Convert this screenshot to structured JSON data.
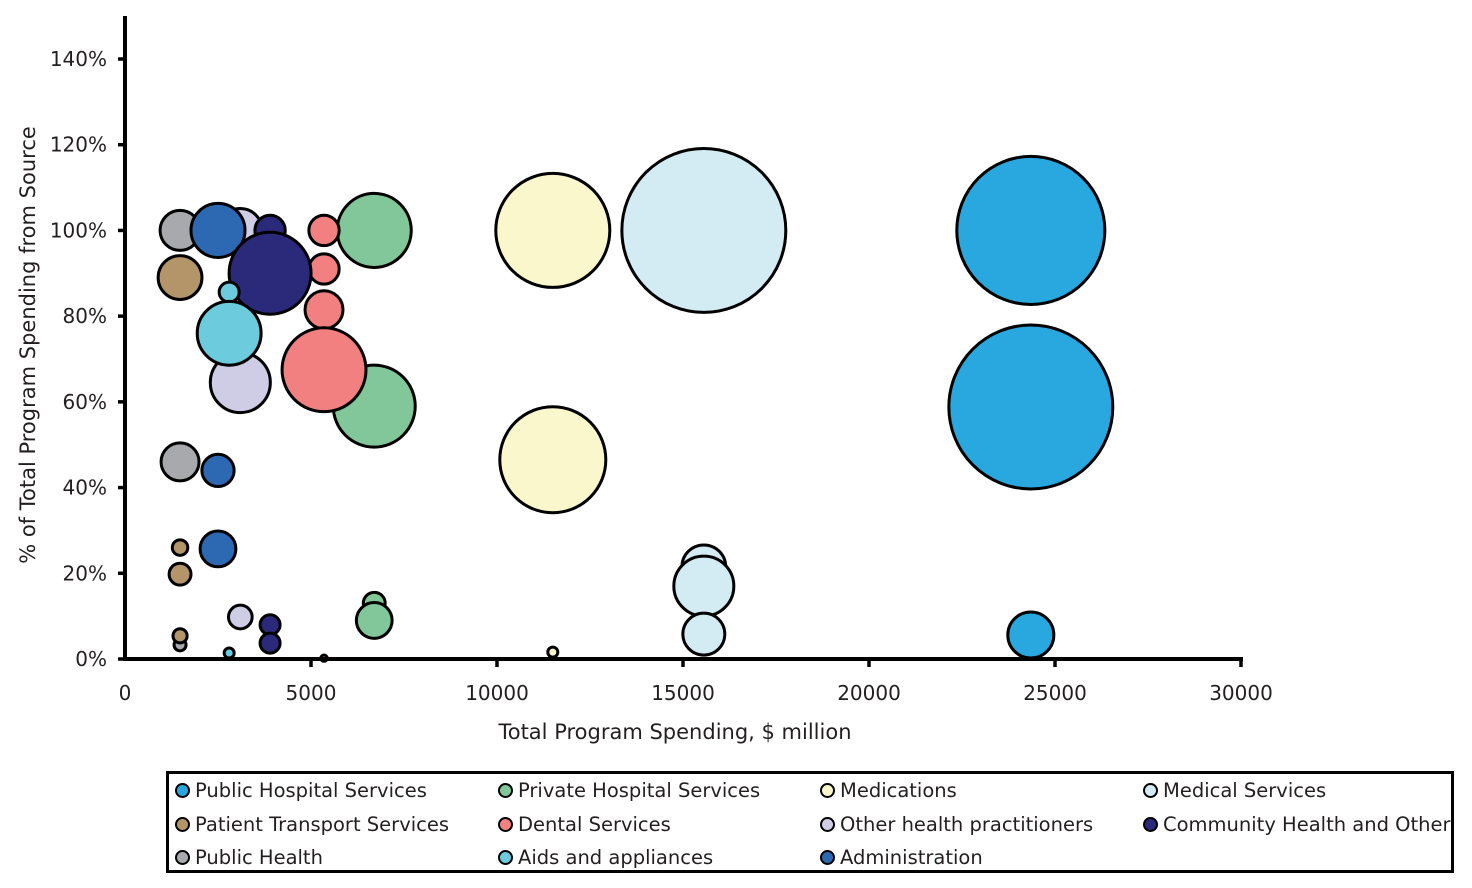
{
  "chart_data": {
    "type": "scatter",
    "subtype": "bubble",
    "title": "",
    "xlabel": "Total Program Spending, $ million",
    "ylabel": "% of Total Program Spending from Source",
    "xlim": [
      0,
      30000
    ],
    "ylim": [
      0,
      140
    ],
    "x_ticks": [
      0,
      5000,
      10000,
      15000,
      20000,
      25000,
      30000
    ],
    "x_tick_labels": [
      "0",
      "5000",
      "10000",
      "15000",
      "20000",
      "25000",
      "30000"
    ],
    "y_ticks": [
      0,
      20,
      40,
      60,
      80,
      100,
      120,
      140
    ],
    "y_tick_labels": [
      "0%",
      "20%",
      "40%",
      "60%",
      "80%",
      "100%",
      "120%",
      "140%"
    ],
    "grid": false,
    "legend_position": "bottom",
    "size_note": "bubble area proportional to spending from source (relative units)",
    "series": [
      {
        "name": "Public Hospital Services",
        "color": "#29a8e0",
        "x": 24350,
        "points": [
          {
            "y": 100,
            "size": 54.8
          },
          {
            "y": 58.8,
            "size": 67.2
          },
          {
            "y": 5.6,
            "size": 5.3
          }
        ]
      },
      {
        "name": "Private Hospital Services",
        "color": "#82c79a",
        "x": 6700,
        "points": [
          {
            "y": 100,
            "size": 13.7
          },
          {
            "y": 59,
            "size": 16.8
          },
          {
            "y": 13,
            "size": 1.2
          },
          {
            "y": 9,
            "size": 3.2
          }
        ]
      },
      {
        "name": "Medications",
        "color": "#fbf7cc",
        "x": 11500,
        "points": [
          {
            "y": 100,
            "size": 32.5
          },
          {
            "y": 46.5,
            "size": 28.1
          },
          {
            "y": 1.6,
            "size": 0.25
          }
        ]
      },
      {
        "name": "Medical Services",
        "color": "#d3ebf3",
        "x": 15560,
        "points": [
          {
            "y": 100,
            "size": 67.2
          },
          {
            "y": 21.5,
            "size": 4.8
          },
          {
            "y": 17,
            "size": 9.0
          },
          {
            "y": 5.8,
            "size": 4.4
          }
        ]
      },
      {
        "name": "Patient Transport Services",
        "color": "#b39569",
        "x": 1480,
        "points": [
          {
            "y": 89,
            "size": 4.8
          },
          {
            "y": 26,
            "size": 0.6
          },
          {
            "y": 19.8,
            "size": 1.2
          },
          {
            "y": 5.4,
            "size": 0.5
          }
        ]
      },
      {
        "name": "Dental Services",
        "color": "#f28080",
        "x": 5350,
        "points": [
          {
            "y": 100,
            "size": 2.3
          },
          {
            "y": 91,
            "size": 2.3
          },
          {
            "y": 81.5,
            "size": 3.6
          },
          {
            "y": 67.5,
            "size": 17.6
          },
          {
            "y": 0.2,
            "size": 0.1
          }
        ]
      },
      {
        "name": "Other health practitioners",
        "color": "#cfcde6",
        "x": 3100,
        "points": [
          {
            "y": 100,
            "size": 4.8
          },
          {
            "y": 64.5,
            "size": 9.0
          },
          {
            "y": 9.8,
            "size": 1.4
          }
        ]
      },
      {
        "name": "Community Health and Other",
        "color": "#2b2a7a",
        "x": 3900,
        "points": [
          {
            "y": 100,
            "size": 2.3
          },
          {
            "y": 90,
            "size": 16.8
          },
          {
            "y": 8,
            "size": 1.0
          },
          {
            "y": 3.7,
            "size": 1.0
          }
        ]
      },
      {
        "name": "Public Health",
        "color": "#a7a9ac",
        "x": 1480,
        "points": [
          {
            "y": 100,
            "size": 4.0
          },
          {
            "y": 46,
            "size": 3.6
          },
          {
            "y": 3.3,
            "size": 0.36
          }
        ]
      },
      {
        "name": "Aids and appliances",
        "color": "#6ccbdc",
        "x": 2800,
        "points": [
          {
            "y": 85.6,
            "size": 1.0
          },
          {
            "y": 76,
            "size": 10.2
          },
          {
            "y": 1.4,
            "size": 0.25
          }
        ]
      },
      {
        "name": "Administration",
        "color": "#2d68b3",
        "x": 2500,
        "points": [
          {
            "y": 100,
            "size": 7.3
          },
          {
            "y": 44,
            "size": 2.6
          },
          {
            "y": 25.7,
            "size": 3.2
          }
        ]
      }
    ],
    "draw_order": [
      [
        "Public Hospital Services",
        0
      ],
      [
        "Public Hospital Services",
        1
      ],
      [
        "Public Hospital Services",
        2
      ],
      [
        "Medical Services",
        0
      ],
      [
        "Medical Services",
        1
      ],
      [
        "Medical Services",
        2
      ],
      [
        "Medical Services",
        3
      ],
      [
        "Medications",
        0
      ],
      [
        "Medications",
        1
      ],
      [
        "Medications",
        2
      ],
      [
        "Private Hospital Services",
        1
      ],
      [
        "Private Hospital Services",
        0
      ],
      [
        "Private Hospital Services",
        2
      ],
      [
        "Private Hospital Services",
        3
      ],
      [
        "Dental Services",
        0
      ],
      [
        "Dental Services",
        1
      ],
      [
        "Dental Services",
        2
      ],
      [
        "Dental Services",
        3
      ],
      [
        "Dental Services",
        4
      ],
      [
        "Other health practitioners",
        0
      ],
      [
        "Other health practitioners",
        1
      ],
      [
        "Other health practitioners",
        2
      ],
      [
        "Public Health",
        0
      ],
      [
        "Public Health",
        1
      ],
      [
        "Public Health",
        2
      ],
      [
        "Patient Transport Services",
        0
      ],
      [
        "Patient Transport Services",
        1
      ],
      [
        "Patient Transport Services",
        2
      ],
      [
        "Patient Transport Services",
        3
      ],
      [
        "Administration",
        0
      ],
      [
        "Administration",
        1
      ],
      [
        "Administration",
        2
      ],
      [
        "Community Health and Other",
        0
      ],
      [
        "Community Health and Other",
        1
      ],
      [
        "Community Health and Other",
        2
      ],
      [
        "Community Health and Other",
        3
      ],
      [
        "Aids and appliances",
        0
      ],
      [
        "Aids and appliances",
        1
      ],
      [
        "Aids and appliances",
        2
      ]
    ]
  },
  "legend": {
    "items": [
      {
        "label": "Public Hospital Services",
        "color": "#29a8e0"
      },
      {
        "label": "Private Hospital Services",
        "color": "#82c79a"
      },
      {
        "label": "Medications",
        "color": "#fbf7cc"
      },
      {
        "label": "Medical Services",
        "color": "#d3ebf3"
      },
      {
        "label": "Patient Transport Services",
        "color": "#b39569"
      },
      {
        "label": "Dental Services",
        "color": "#f28080"
      },
      {
        "label": "Other health practitioners",
        "color": "#cfcde6"
      },
      {
        "label": "Community Health and Other",
        "color": "#2b2a7a"
      },
      {
        "label": "Public Health",
        "color": "#a7a9ac"
      },
      {
        "label": "Aids and appliances",
        "color": "#6ccbdc"
      },
      {
        "label": "Administration",
        "color": "#2d68b3"
      }
    ]
  }
}
